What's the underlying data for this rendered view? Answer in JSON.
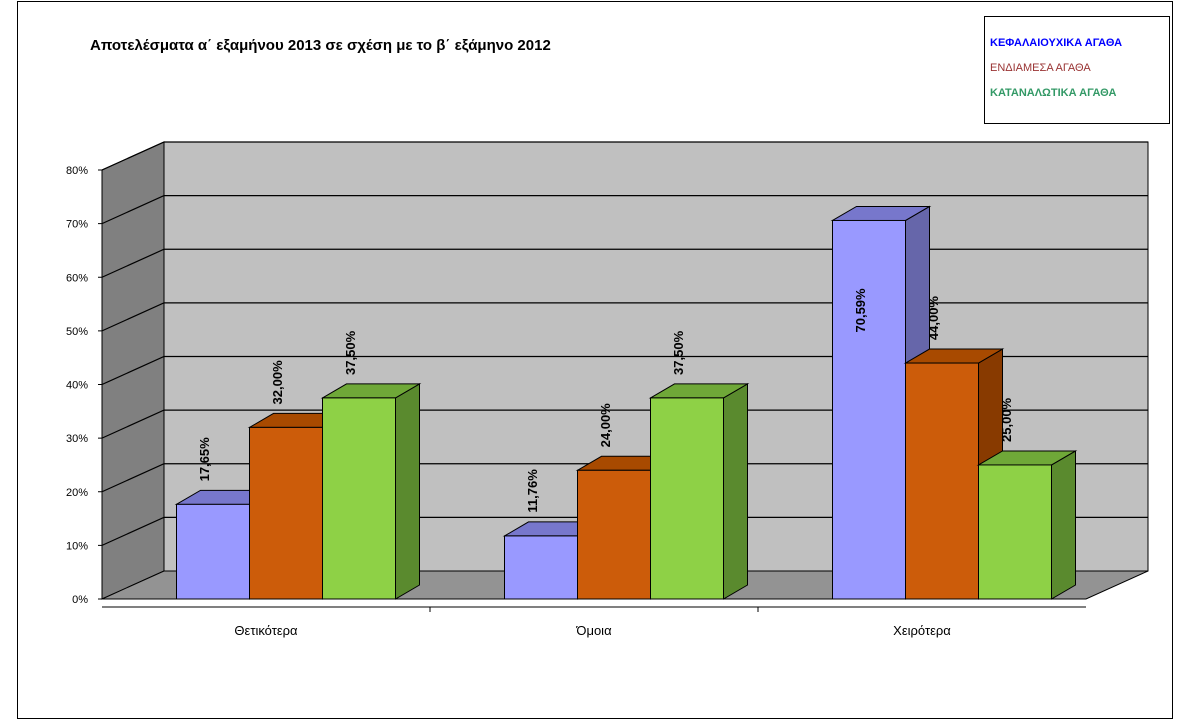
{
  "chart_data": {
    "type": "bar",
    "title": "Αποτελέσματα α΄ εξαμήνου 2013 σε σχέση με το  β΄ εξάμηνο 2012",
    "categories": [
      "Θετικότερα",
      "Όμοια",
      "Χειρότερα"
    ],
    "series": [
      {
        "name": "ΚΕΦΑΛΑΙΟΥΧΙΚΑ ΑΓΑΘΑ",
        "values": [
          17.65,
          11.76,
          70.59
        ],
        "labels": [
          "17,65%",
          "11,76%",
          "70,59%"
        ],
        "color": "#9999FF",
        "side_color": "#6666AA",
        "top_color": "#7777CC",
        "legend_color": "#0000FF"
      },
      {
        "name": "ΕΝΔΙΑΜΕΣΑ ΑΓΑΘΑ",
        "values": [
          32.0,
          24.0,
          44.0
        ],
        "labels": [
          "32,00%",
          "24,00%",
          "44,00%"
        ],
        "color": "#CC5C0A",
        "side_color": "#883A00",
        "top_color": "#A84A00",
        "legend_color": "#993333"
      },
      {
        "name": "ΚΑΤΑΝΑΛΩΤΙΚΑ ΑΓΑΘΑ",
        "values": [
          37.5,
          37.5,
          25.0
        ],
        "labels": [
          "37,50%",
          "37,50%",
          "25,00%"
        ],
        "color": "#8ED146",
        "side_color": "#5A8A2E",
        "top_color": "#6FA838",
        "legend_color": "#339966"
      }
    ],
    "y_ticks": [
      "0%",
      "10%",
      "20%",
      "30%",
      "40%",
      "50%",
      "60%",
      "70%",
      "80%"
    ],
    "ylim": [
      0,
      80
    ],
    "grid": true,
    "legend_position": "top-right",
    "xlabel": "",
    "ylabel": ""
  }
}
